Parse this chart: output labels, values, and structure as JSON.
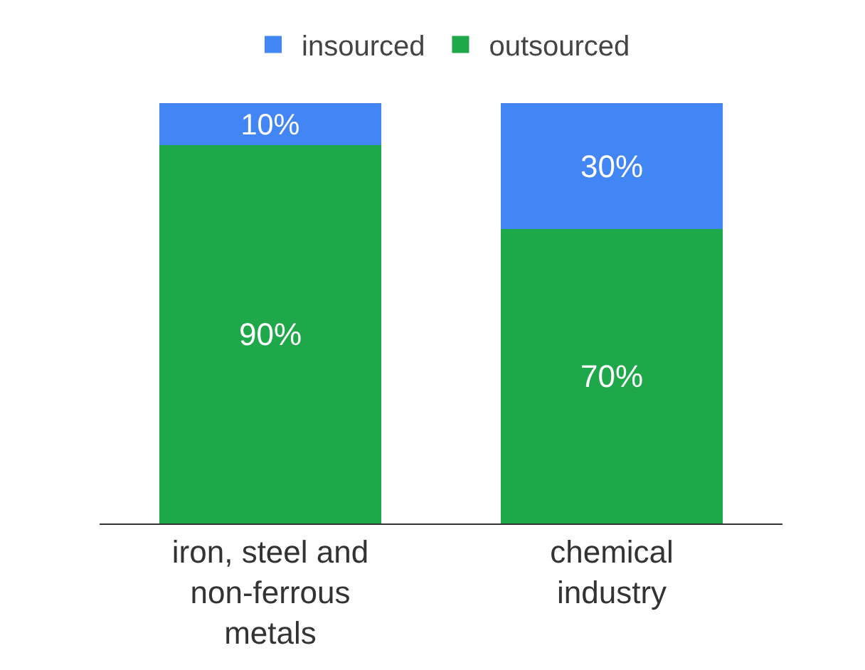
{
  "chart_data": {
    "type": "bar",
    "stacked": true,
    "categories": [
      "iron, steel and non-ferrous metals",
      "chemical industry"
    ],
    "series": [
      {
        "name": "outsourced",
        "color": "#1fa84a",
        "values": [
          90,
          70
        ],
        "value_labels": [
          "90%",
          "70%"
        ]
      },
      {
        "name": "insourced",
        "color": "#4285f4",
        "values": [
          10,
          30
        ],
        "value_labels": [
          "10%",
          "30%"
        ]
      }
    ],
    "legend": "top"
  }
}
